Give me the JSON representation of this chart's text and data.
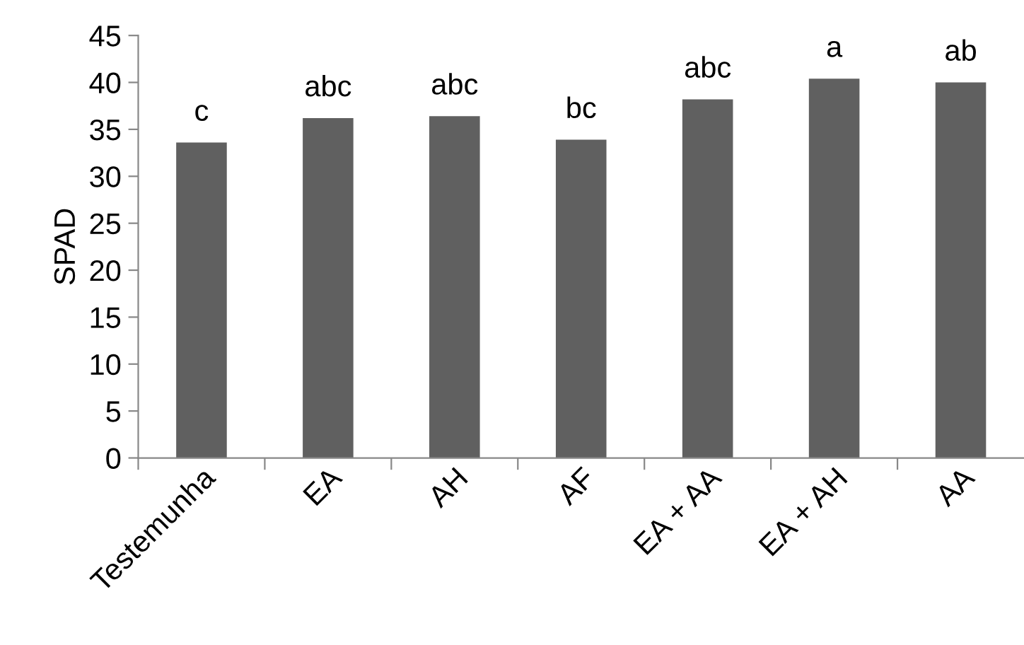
{
  "chart_data": {
    "type": "bar",
    "ylabel": "SPAD",
    "categories": [
      "Testemunha",
      "EA",
      "AH",
      "AF",
      "EA + AA",
      "EA + AH",
      "AA"
    ],
    "values": [
      33.6,
      36.2,
      36.4,
      33.9,
      38.2,
      40.4,
      40.0
    ],
    "value_labels": [
      "c",
      "abc",
      "abc",
      "bc",
      "abc",
      "a",
      "ab"
    ],
    "color": "#606060",
    "ylim": [
      0,
      45
    ],
    "yticks": [
      0,
      5,
      10,
      15,
      20,
      25,
      30,
      35,
      40,
      45
    ],
    "grid": false,
    "legend": false
  }
}
